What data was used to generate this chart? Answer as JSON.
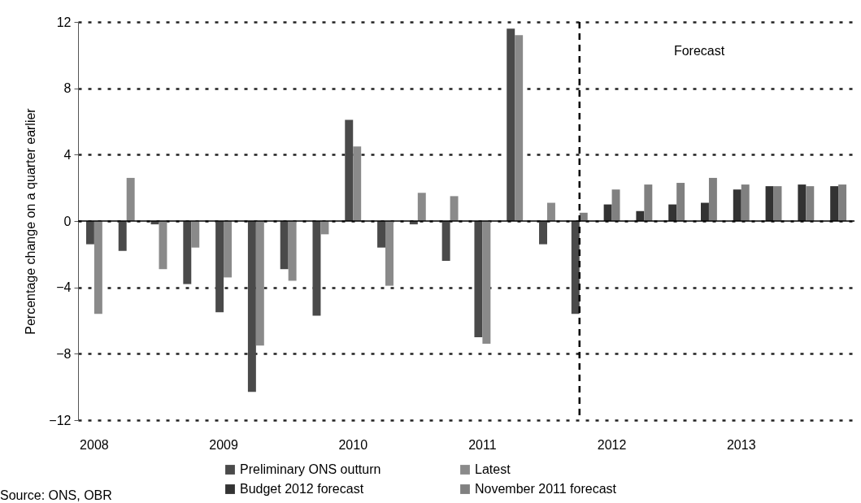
{
  "chart_data": {
    "type": "bar",
    "ylabel": "Percentage change on a quarter earlier",
    "categories": [
      "2008",
      null,
      null,
      null,
      "2009",
      null,
      null,
      null,
      "2010",
      null,
      null,
      null,
      "2011",
      null,
      null,
      null,
      "2012",
      null,
      null,
      null,
      "2013",
      null,
      null,
      null
    ],
    "series": [
      {
        "name": "Preliminary ONS outturn",
        "color": "#4a4a4a",
        "values": [
          -1.4,
          -1.8,
          -0.2,
          -3.8,
          -5.5,
          -10.3,
          -2.9,
          -5.7,
          6.1,
          -1.6,
          -0.2,
          -2.4,
          -7.0,
          11.6,
          -1.4,
          -5.6,
          null,
          null,
          null,
          null,
          null,
          null,
          null,
          null
        ]
      },
      {
        "name": "Budget 2012 forecast",
        "color": "#333333",
        "values": [
          null,
          null,
          null,
          null,
          null,
          null,
          null,
          null,
          null,
          null,
          null,
          null,
          null,
          null,
          null,
          null,
          1.0,
          0.6,
          1.0,
          1.1,
          1.9,
          2.1,
          2.2,
          2.1
        ]
      },
      {
        "name": "Latest",
        "color": "#8a8a8a",
        "values": [
          -5.6,
          2.6,
          -2.9,
          -1.6,
          -3.4,
          -7.5,
          -3.6,
          -0.8,
          4.5,
          -3.9,
          1.7,
          1.5,
          -7.4,
          11.2,
          1.1,
          null,
          null,
          null,
          null,
          null,
          null,
          null,
          null,
          null
        ]
      },
      {
        "name": "November 2011 forecast",
        "color": "#808080",
        "values": [
          null,
          null,
          null,
          null,
          null,
          null,
          null,
          null,
          null,
          null,
          null,
          null,
          null,
          null,
          null,
          0.5,
          1.9,
          2.2,
          2.3,
          2.6,
          2.2,
          2.1,
          2.1,
          2.2
        ]
      }
    ],
    "ylim": [
      -12,
      12
    ],
    "yticks": [
      -12,
      -8,
      -4,
      0,
      4,
      8,
      12
    ],
    "grid": "y",
    "legend": "bottom",
    "annotations": [
      "Forecast",
      "Source: ONS, OBR"
    ]
  }
}
